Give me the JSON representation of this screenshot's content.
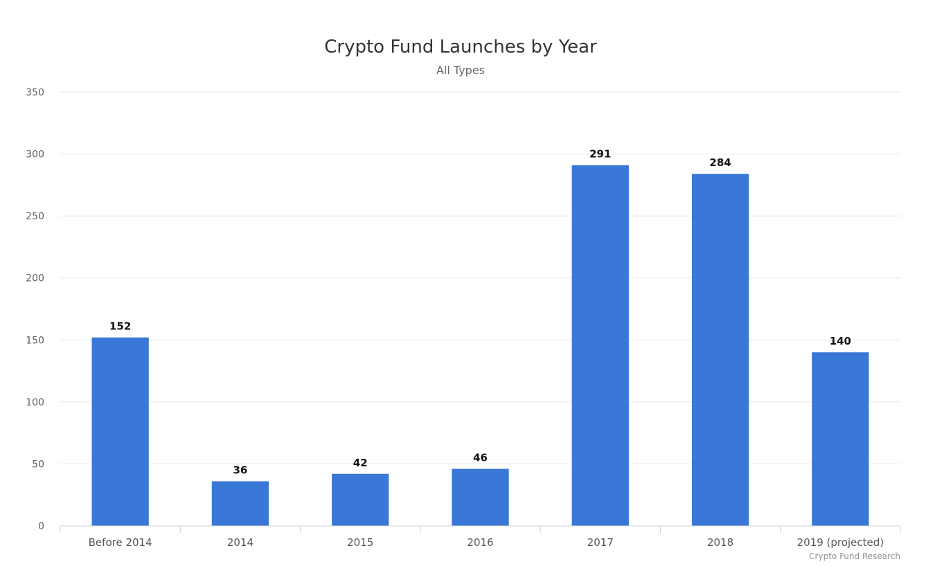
{
  "chart_data": {
    "type": "bar",
    "title": "Crypto Fund Launches by Year",
    "subtitle": "All Types",
    "categories": [
      "Before 2014",
      "2014",
      "2015",
      "2016",
      "2017",
      "2018",
      "2019 (projected)"
    ],
    "values": [
      152,
      36,
      42,
      46,
      291,
      284,
      140
    ],
    "ylim": [
      0,
      350
    ],
    "yticks": [
      0,
      50,
      100,
      150,
      200,
      250,
      300,
      350
    ],
    "xlabel": "",
    "ylabel": "",
    "grid": true,
    "legend": "none",
    "bar_color": "#3a78d8",
    "credit": "Crypto Fund Research"
  }
}
